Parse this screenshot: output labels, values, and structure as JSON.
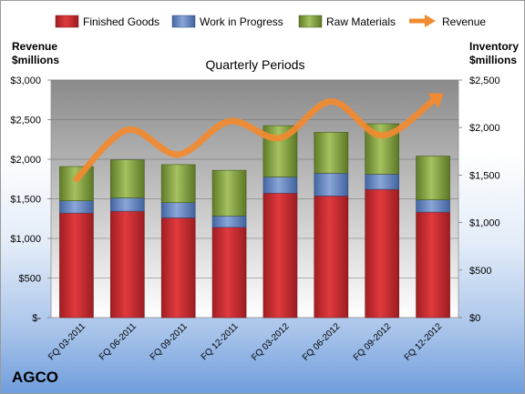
{
  "company": "AGCO",
  "chart_data": {
    "type": "bar",
    "title": "Quarterly Periods",
    "left_axis_title": [
      "Revenue",
      "$millions"
    ],
    "right_axis_title": [
      "Inventory",
      "$millions"
    ],
    "categories": [
      "FQ 03-2011",
      "FQ 06-2011",
      "FQ 09-2011",
      "FQ 12-2011",
      "FQ 03-2012",
      "FQ 06-2012",
      "FQ 09-2012",
      "FQ 12-2012"
    ],
    "stacked": true,
    "series": [
      {
        "name": "Finished Goods",
        "axis": "right",
        "color": "#c0272d",
        "values": [
          1100,
          1120,
          1050,
          950,
          1310,
          1280,
          1350,
          1110
        ]
      },
      {
        "name": "Work in Progress",
        "axis": "right",
        "color": "#5b7fbf",
        "values": [
          130,
          140,
          160,
          120,
          170,
          240,
          160,
          130
        ]
      },
      {
        "name": "Raw Materials",
        "axis": "right",
        "color": "#7a9a3a",
        "values": [
          360,
          400,
          400,
          480,
          540,
          430,
          530,
          460
        ]
      },
      {
        "name": "Revenue",
        "axis": "left",
        "type": "line",
        "color": "#f28a30",
        "values": [
          1750,
          2370,
          2060,
          2480,
          2270,
          2730,
          2300,
          2740
        ]
      }
    ],
    "left_axis": {
      "min": 0,
      "max": 3000,
      "ticks": [
        0,
        500,
        1000,
        1500,
        2000,
        2500,
        3000
      ],
      "tick_labels": [
        "$-",
        "$500",
        "$1,000",
        "$1,500",
        "$2,000",
        "$2,500",
        "$3,000"
      ]
    },
    "right_axis": {
      "min": 0,
      "max": 2500,
      "ticks": [
        0,
        500,
        1000,
        1500,
        2000,
        2500
      ],
      "tick_labels": [
        "$0",
        "$500",
        "$1,000",
        "$1,500",
        "$2,000",
        "$2,500"
      ]
    },
    "grid": true,
    "legend_position": "top"
  }
}
